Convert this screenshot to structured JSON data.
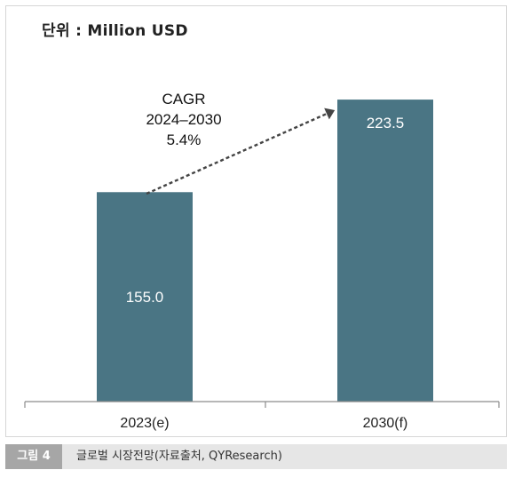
{
  "unit_label": "단위 : Million USD",
  "caption": {
    "badge": "그림 4",
    "text": "글로벌 시장전망(자료출처, QYResearch)"
  },
  "colors": {
    "bar": "#4a7584",
    "arrow": "#444444",
    "axis": "#8c8c8c"
  },
  "chart_data": {
    "type": "bar",
    "categories": [
      "2023(e)",
      "2030(f)"
    ],
    "values": [
      155.0,
      223.5
    ],
    "value_labels": [
      "155.0",
      "223.5"
    ],
    "annotation": {
      "lines": [
        "CAGR",
        "2024–2030",
        "5.4%"
      ]
    },
    "ylim": [
      0,
      240
    ],
    "grid": false,
    "legend": "none"
  }
}
